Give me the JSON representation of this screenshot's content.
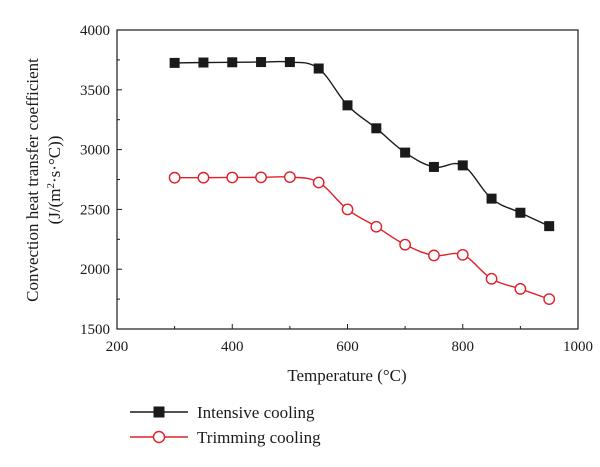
{
  "chart_data": {
    "type": "line",
    "xlabel": "Temperature (°C)",
    "ylabel_line1": "Convection heat transfer coefficient",
    "ylabel_line2_prefix": "(J/(m",
    "ylabel_line2_sup": "2",
    "ylabel_line2_suffix": "·s·°C))",
    "xlim": [
      200,
      1000
    ],
    "ylim": [
      1500,
      4000
    ],
    "xticks": [
      200,
      400,
      600,
      800,
      1000
    ],
    "yticks": [
      1500,
      2000,
      2500,
      3000,
      3500,
      4000
    ],
    "grid": false,
    "legend_position": "bottom",
    "x": [
      300,
      350,
      400,
      450,
      500,
      550,
      600,
      650,
      700,
      750,
      800,
      850,
      900,
      950
    ],
    "series": [
      {
        "name": "Intensive cooling",
        "marker": "filled-square",
        "color": "#1a1a1a",
        "values": [
          3725,
          3728,
          3730,
          3732,
          3732,
          3678,
          3370,
          3178,
          2975,
          2855,
          2868,
          2590,
          2472,
          2360
        ]
      },
      {
        "name": "Trimming cooling",
        "marker": "open-circle",
        "color": "#e0202a",
        "values": [
          2765,
          2765,
          2767,
          2768,
          2770,
          2725,
          2500,
          2355,
          2205,
          2115,
          2120,
          1920,
          1835,
          1750
        ]
      }
    ]
  }
}
